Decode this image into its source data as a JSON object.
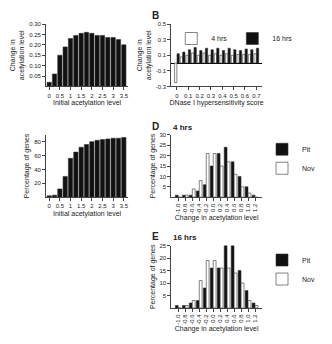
{
  "chart_data": [
    {
      "type": "bar",
      "xlabel": "Initial acetylation level",
      "ylabel": "Change in acetylation level",
      "x": [
        0,
        0.25,
        0.5,
        0.75,
        1.0,
        1.25,
        1.5,
        1.75,
        2.0,
        2.25,
        2.5,
        2.75,
        3.0,
        3.25,
        3.5
      ],
      "values": [
        0.02,
        0.06,
        0.15,
        0.19,
        0.23,
        0.245,
        0.255,
        0.26,
        0.255,
        0.245,
        0.245,
        0.235,
        0.235,
        0.225,
        0.2
      ],
      "color": "#111111",
      "xlim": [
        -0.15,
        3.7
      ],
      "xticks": [
        0,
        0.5,
        1,
        1.5,
        2,
        2.5,
        3,
        3.5
      ],
      "ylim": [
        0,
        0.3
      ],
      "yticks": [
        0.05,
        {
          "value": 0.1,
          "label": "0.10"
        },
        0.15,
        {
          "value": 0.2,
          "label": "0.20"
        },
        0.25,
        {
          "value": 0.3,
          "label": "0.30"
        }
      ],
      "grid": false
    },
    {
      "type": "bar",
      "xlabel": "Initial acetylation level",
      "ylabel": "Percentage of genes",
      "x": [
        0,
        0.25,
        0.5,
        0.75,
        1.0,
        1.25,
        1.5,
        1.75,
        2.0,
        2.25,
        2.5,
        2.75,
        3.0,
        3.25,
        3.5
      ],
      "values": [
        2,
        3,
        12,
        30,
        56,
        65,
        72,
        76,
        80,
        82,
        83,
        84,
        85,
        85,
        86
      ],
      "color": "#111111",
      "xlim": [
        -0.15,
        3.7
      ],
      "xticks": [
        0,
        0.5,
        1,
        1.5,
        2,
        2.5,
        3,
        3.5
      ],
      "ylim": [
        0,
        90
      ],
      "yticks": [
        20,
        40,
        60,
        80
      ],
      "grid": false
    },
    {
      "type": "bar",
      "xlabel": "DNase I hypersensitivity score",
      "ylabel": "Change in acetylation level",
      "annotations": [
        "B"
      ],
      "x": [
        0.0,
        0.05,
        0.1,
        0.15,
        0.2,
        0.25,
        0.3,
        0.35,
        0.4,
        0.45,
        0.5,
        0.55,
        0.6,
        0.65,
        0.7
      ],
      "series": [
        {
          "name": "4 hrs",
          "color": "#ffffff",
          "values": [
            -0.25,
            0.08,
            0.1,
            0.13,
            0.1,
            0.13,
            0.1,
            0.12,
            0.1,
            0.12,
            0.1,
            0.11,
            0.11,
            0.11,
            0.12
          ]
        },
        {
          "name": "16 hrs",
          "color": "#111111",
          "values": [
            0.12,
            0.14,
            0.17,
            0.2,
            0.16,
            0.19,
            0.17,
            0.19,
            0.16,
            0.19,
            0.17,
            0.16,
            0.18,
            0.17,
            0.19
          ]
        }
      ],
      "xlim": [
        -0.05,
        0.75
      ],
      "xticks": [
        0,
        0.1,
        0.2,
        0.3,
        0.4,
        0.5,
        0.6,
        0.7
      ],
      "ylim": [
        -0.3,
        0.5
      ],
      "yticks": [
        -0.3,
        -0.1,
        0.1,
        0.3,
        0.5
      ],
      "legend": "upper left",
      "grid": false
    },
    {
      "type": "bar",
      "title": "4 hrs",
      "xlabel": "Change in acetylation level",
      "ylabel": "Percentage of genes",
      "annotations": [
        "D"
      ],
      "x": [
        -1.0,
        -0.8,
        -0.6,
        -0.4,
        -0.2,
        0.0,
        0.2,
        0.4,
        0.6,
        0.8,
        1.0,
        1.2
      ],
      "series": [
        {
          "name": "Pit",
          "color": "#111111",
          "values": [
            1,
            1,
            1,
            3,
            6,
            15,
            21,
            24,
            17,
            10,
            5,
            1
          ]
        },
        {
          "name": "Nov",
          "color": "#ffffff",
          "values": [
            0,
            1,
            4,
            8,
            21,
            21,
            15,
            17,
            11,
            5,
            2,
            0
          ]
        }
      ],
      "xlim": [
        -1.2,
        1.4
      ],
      "xticks": [
        {
          "value": -1,
          "label": "-1.0"
        },
        -0.8,
        -0.6,
        -0.4,
        -0.2,
        {
          "value": 0,
          "label": "0.0"
        },
        0.2,
        0.4,
        0.6,
        0.8,
        {
          "value": 1,
          "label": "1.0"
        },
        1.2
      ],
      "ylim": [
        0,
        30
      ],
      "yticks": [
        5,
        10,
        15,
        20,
        25,
        30
      ],
      "legend": "upper right",
      "grid": false
    },
    {
      "type": "bar",
      "title": "16 hrs",
      "xlabel": "Change in acetylation level",
      "ylabel": "Percentage of genes",
      "annotations": [
        "E"
      ],
      "x": [
        -1.0,
        -0.8,
        -0.6,
        -0.4,
        -0.2,
        0.0,
        0.2,
        0.4,
        0.6,
        0.8,
        1.0,
        1.2
      ],
      "series": [
        {
          "name": "Pit",
          "color": "#111111",
          "values": [
            1,
            1,
            2,
            3,
            8,
            16,
            16,
            25,
            25,
            15,
            7,
            2
          ]
        },
        {
          "name": "Nov",
          "color": "#ffffff",
          "values": [
            0,
            1,
            3,
            11,
            19,
            19,
            16,
            16,
            14,
            10,
            3,
            1
          ]
        }
      ],
      "xlim": [
        -1.2,
        1.4
      ],
      "xticks": [
        {
          "value": -1,
          "label": "-1.0"
        },
        -0.8,
        -0.6,
        -0.4,
        -0.2,
        {
          "value": 0,
          "label": "0.0"
        },
        0.2,
        0.4,
        0.6,
        0.8,
        {
          "value": 1,
          "label": "1.0"
        },
        1.2
      ],
      "ylim": [
        0,
        25
      ],
      "yticks": [
        5,
        10,
        15,
        20,
        25
      ],
      "legend": "upper right",
      "grid": false
    }
  ]
}
